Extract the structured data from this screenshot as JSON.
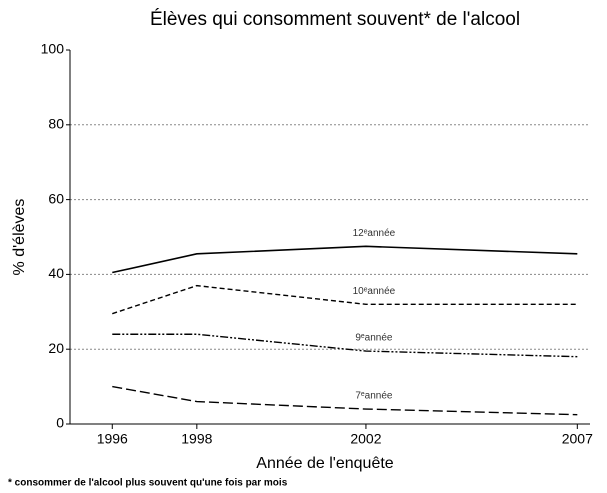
{
  "chart_data": {
    "type": "line",
    "title": "Élèves qui consomment souvent* de l'alcool",
    "x_label": "Année de l'enquête",
    "y_label": "% d'élèves",
    "footnote": "* consommer de l'alcool plus souvent qu'une fois par mois",
    "x": [
      1996,
      1998,
      2002,
      2007
    ],
    "series": [
      {
        "name": "12ᵉannée",
        "color": "#000000",
        "values": [
          40.5,
          45.5,
          47.5,
          45.5
        ]
      },
      {
        "name": "10ᵉannée",
        "color": "#000000",
        "values": [
          29.5,
          37,
          32,
          32
        ]
      },
      {
        "name": "9ᵉannée",
        "color": "#000000",
        "values": [
          24,
          24,
          19.5,
          18
        ]
      },
      {
        "name": "7ᵉannée",
        "color": "#000000",
        "values": [
          10,
          6,
          4,
          2.5
        ]
      }
    ],
    "xlim": [
      1995,
      2007.3
    ],
    "xticks": [
      1996,
      1998,
      2002,
      2007
    ],
    "ylim": [
      0,
      100
    ],
    "yticks": [
      0,
      20,
      40,
      60,
      80,
      100
    ],
    "grid": true
  }
}
